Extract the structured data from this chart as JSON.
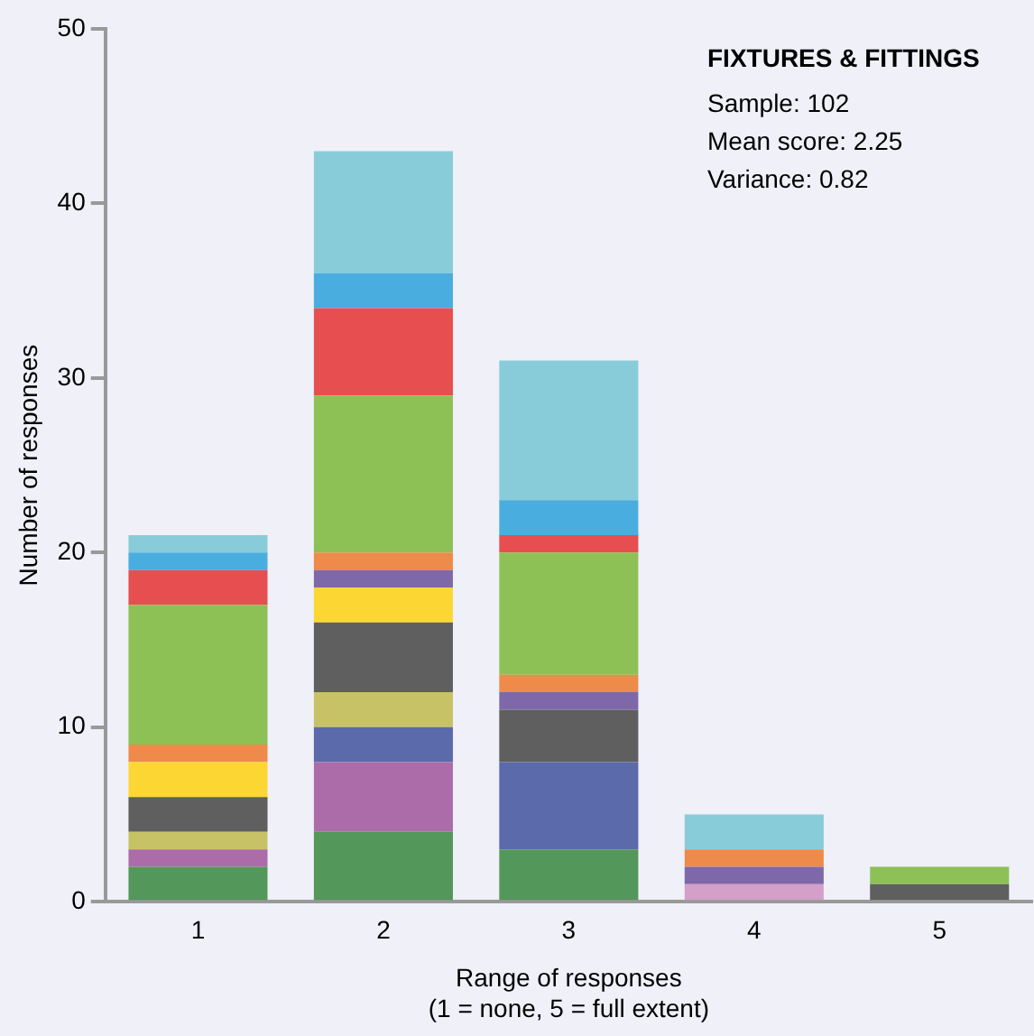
{
  "chart_data": {
    "type": "bar",
    "stacked": true,
    "title": "FIXTURES & FITTINGS",
    "annotations": [
      "Sample: 102",
      "Mean score: 2.25",
      "Variance: 0.82"
    ],
    "xlabel": "Range of responses\n(1 = none, 5 = full extent)",
    "ylabel": "Number of responses",
    "categories": [
      "1",
      "2",
      "3",
      "4",
      "5"
    ],
    "ylim": [
      0,
      50
    ],
    "yticks": [
      0,
      10,
      20,
      30,
      40,
      50
    ],
    "grid": false,
    "legend": false,
    "series": [
      {
        "color": "#d49fc9",
        "values": [
          0,
          0,
          0,
          1,
          0
        ]
      },
      {
        "color": "#54975a",
        "values": [
          2,
          4,
          3,
          0,
          0
        ]
      },
      {
        "color": "#ab6ca9",
        "values": [
          1,
          4,
          0,
          0,
          0
        ]
      },
      {
        "color": "#5a6aaa",
        "values": [
          0,
          2,
          5,
          0,
          0
        ]
      },
      {
        "color": "#c8c266",
        "values": [
          1,
          2,
          0,
          0,
          0
        ]
      },
      {
        "color": "#5f5f5f",
        "values": [
          2,
          4,
          3,
          0,
          1
        ]
      },
      {
        "color": "#fcd733",
        "values": [
          2,
          2,
          0,
          0,
          0
        ]
      },
      {
        "color": "#7f68aa",
        "values": [
          0,
          1,
          1,
          1,
          0
        ]
      },
      {
        "color": "#ee8a4a",
        "values": [
          1,
          1,
          1,
          1,
          0
        ]
      },
      {
        "color": "#8dc155",
        "values": [
          8,
          9,
          7,
          0,
          1
        ]
      },
      {
        "color": "#e74e4f",
        "values": [
          2,
          5,
          1,
          0,
          0
        ]
      },
      {
        "color": "#4aaddf",
        "values": [
          1,
          2,
          2,
          0,
          0
        ]
      },
      {
        "color": "#88ccd9",
        "values": [
          1,
          7,
          8,
          2,
          0
        ]
      }
    ]
  }
}
